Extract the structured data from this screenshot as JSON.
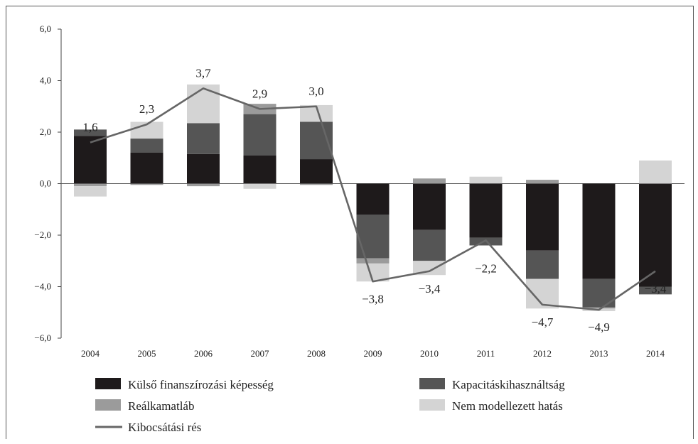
{
  "chart_data": {
    "type": "bar",
    "title": "",
    "xlabel": "",
    "ylabel": "",
    "ylim": [
      -6,
      6
    ],
    "yticks": [
      6,
      4,
      2,
      0,
      -2,
      -4,
      -6
    ],
    "ytick_labels": [
      "6,0",
      "4,0",
      "2,0",
      "0,0",
      "−2,0",
      "−4,0",
      "−6,0"
    ],
    "categories": [
      "2004",
      "2005",
      "2006",
      "2007",
      "2008",
      "2009",
      "2010",
      "2011",
      "2012",
      "2013",
      "2014"
    ],
    "series": [
      {
        "name": "Külső finanszírozási képesség",
        "kind": "bar",
        "color": "#1e1a1b",
        "values": [
          1.85,
          1.2,
          1.15,
          1.1,
          0.95,
          -1.2,
          -1.8,
          -2.1,
          -2.6,
          -3.7,
          -4.0
        ]
      },
      {
        "name": "Kapacitáskihasználtság",
        "kind": "bar",
        "color": "#555555",
        "values": [
          0.25,
          0.55,
          1.2,
          1.6,
          1.45,
          -1.7,
          -1.2,
          -0.3,
          -1.1,
          -1.1,
          -0.3
        ]
      },
      {
        "name": "Reálkamatláb",
        "kind": "bar",
        "color": "#9b9b9b",
        "values": [
          -0.1,
          -0.05,
          -0.1,
          0.4,
          -0.05,
          -0.2,
          0.2,
          0.02,
          0.15,
          -0.05,
          0.0
        ]
      },
      {
        "name": "Nem modellezett hatás",
        "kind": "bar",
        "color": "#d4d4d4",
        "values": [
          -0.4,
          0.65,
          1.5,
          -0.2,
          0.65,
          -0.7,
          -0.55,
          0.25,
          -1.15,
          -0.1,
          0.9
        ]
      },
      {
        "name": "Kibocsátási rés",
        "kind": "line",
        "color": "#666666",
        "values": [
          1.6,
          2.3,
          3.7,
          2.9,
          3.0,
          -3.8,
          -3.4,
          -2.2,
          -4.7,
          -4.9,
          -3.4
        ],
        "labels": [
          "1,6",
          "2,3",
          "3,7",
          "2,9",
          "3,0",
          "−3,8",
          "−3,4",
          "−2,2",
          "−4,7",
          "−4,9",
          "−3,4"
        ]
      }
    ],
    "grid": false,
    "legend_position": "bottom"
  }
}
